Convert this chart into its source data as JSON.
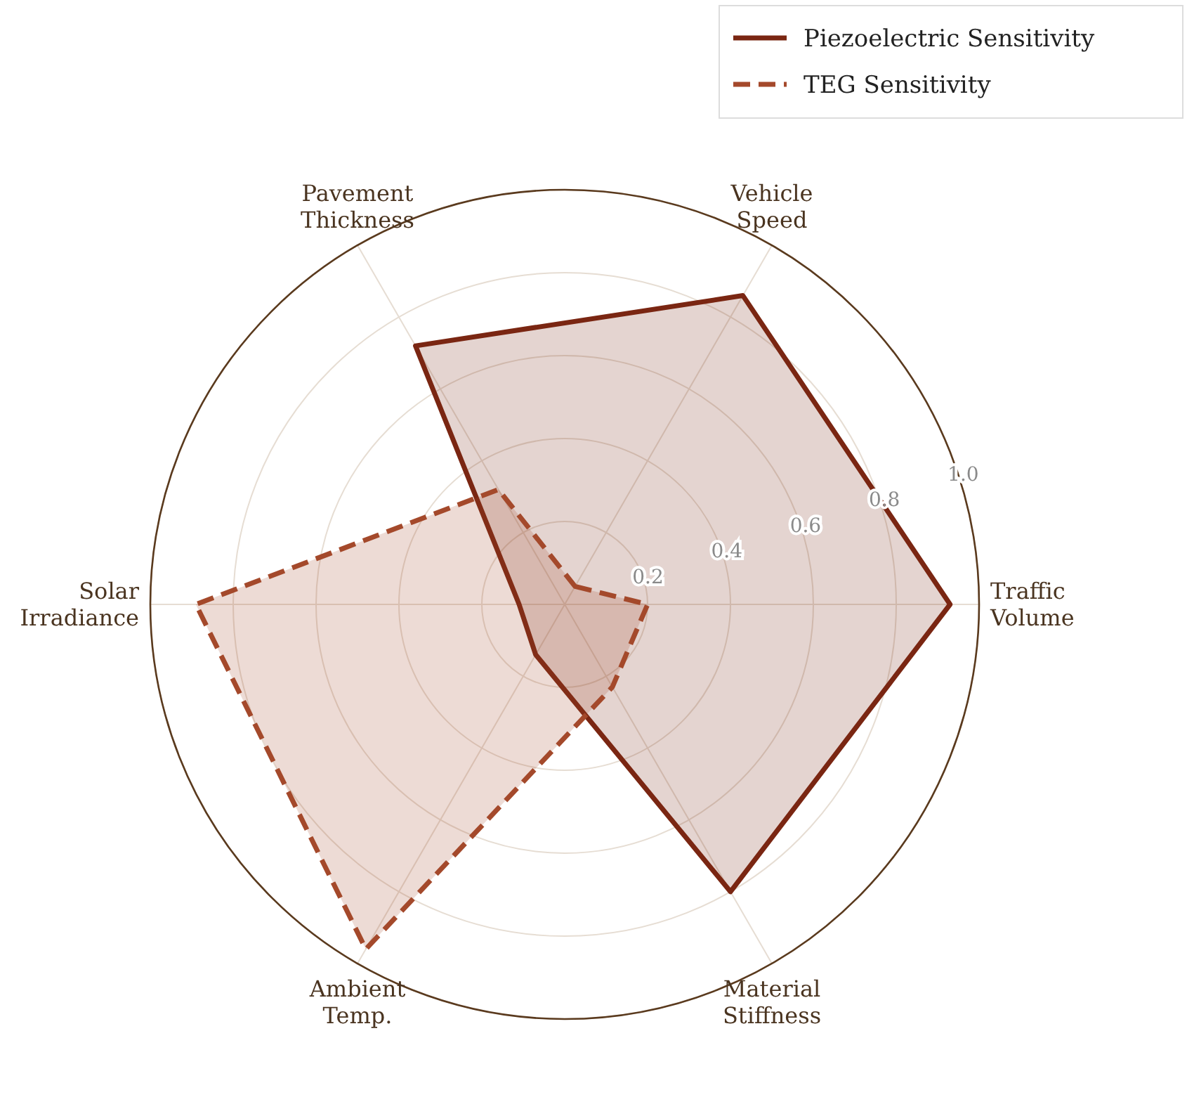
{
  "chart_data": {
    "type": "radar",
    "categories": [
      "Vehicle Speed",
      "Traffic Volume",
      "Material Stiffness",
      "Ambient Temp.",
      "Solar Irradiance",
      "Pavement Thickness"
    ],
    "series": [
      {
        "name": "Piezoelectric Sensitivity",
        "color": "#7a2612",
        "line_style": "solid",
        "values": [
          0.86,
          0.93,
          0.8,
          0.14,
          0.11,
          0.72
        ]
      },
      {
        "name": "TEG Sensitivity",
        "color": "#a4492b",
        "line_style": "dashed",
        "values": [
          0.05,
          0.2,
          0.23,
          0.96,
          0.89,
          0.32
        ]
      }
    ],
    "ylim": [
      0,
      1
    ],
    "yticks": [
      0.2,
      0.4,
      0.6,
      0.8,
      {
        "value": 1,
        "label": "1.0"
      }
    ],
    "grid": true,
    "legend": "top right"
  }
}
